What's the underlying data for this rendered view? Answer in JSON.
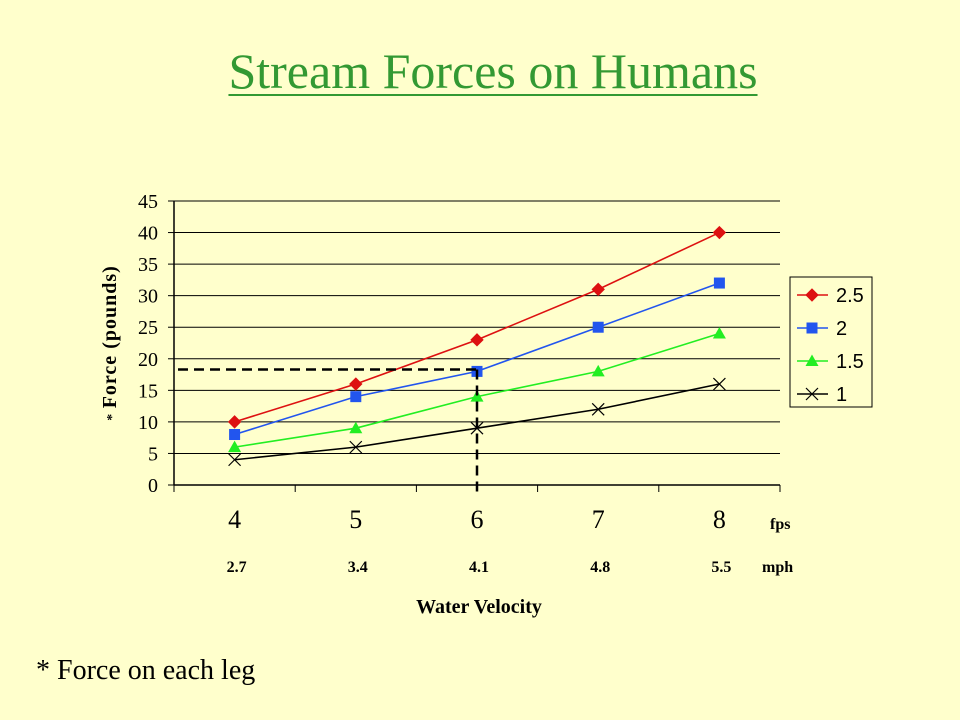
{
  "slide": {
    "title": "Stream Forces on Humans",
    "footnote": "* Force on each leg"
  },
  "chart_data": {
    "type": "line",
    "x": [
      4,
      5,
      6,
      7,
      8
    ],
    "x_secondary": [
      "2.7",
      "3.4",
      "4.1",
      "4.8",
      "5.5"
    ],
    "x_unit": "fps",
    "x_secondary_unit": "mph",
    "xlabel": "Water Velocity",
    "ylabel": "Force (pounds)",
    "ylabel_prefix": "*",
    "ylim": [
      0,
      45
    ],
    "yticks": [
      0,
      5,
      10,
      15,
      20,
      25,
      30,
      35,
      40,
      45
    ],
    "grid": true,
    "legend": "right",
    "series": [
      {
        "name": "2.5",
        "values": [
          10,
          16,
          23,
          31,
          40
        ],
        "color": "#dd1111",
        "marker": "diamond"
      },
      {
        "name": "2",
        "values": [
          8,
          14,
          18,
          25,
          32
        ],
        "color": "#2255ee",
        "marker": "square"
      },
      {
        "name": "1.5",
        "values": [
          6,
          9,
          14,
          18,
          24
        ],
        "color": "#22ee22",
        "marker": "triangle"
      },
      {
        "name": "1",
        "values": [
          4,
          6,
          9,
          12,
          16
        ],
        "color": "#000000",
        "marker": "x"
      }
    ],
    "annotation": {
      "type": "dashed-reference",
      "x": 6,
      "y": 18.3
    }
  }
}
